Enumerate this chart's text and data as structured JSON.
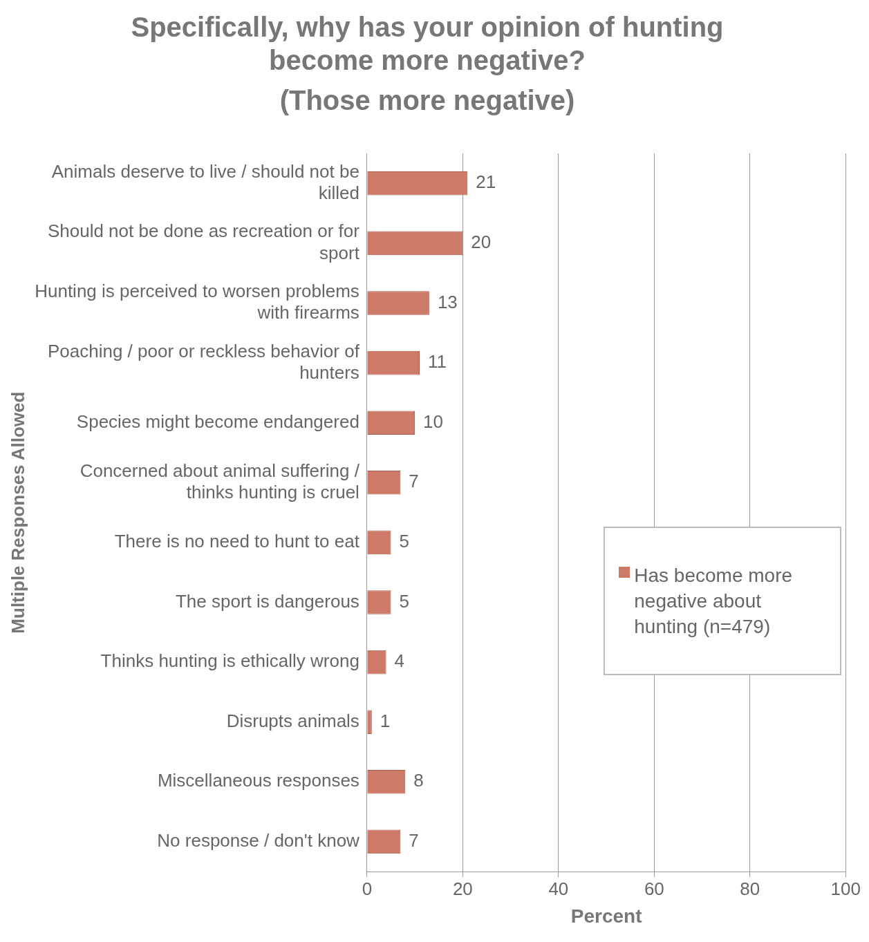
{
  "chart_data": {
    "type": "bar",
    "orientation": "horizontal",
    "title": "Specifically, why has your opinion of hunting become more negative?",
    "subtitle": "(Those more negative)",
    "xlabel": "Percent",
    "ylabel": "Multiple Responses Allowed",
    "categories": [
      "Animals deserve to live / should not be killed",
      "Should not be done as recreation or for sport",
      "Hunting is perceived to worsen problems with firearms",
      "Poaching / poor or reckless behavior of hunters",
      "Species might become endangered",
      "Concerned about animal suffering / thinks hunting is cruel",
      "There is no need to hunt to eat",
      "The sport is dangerous",
      "Thinks hunting is ethically wrong",
      "Disrupts animals",
      "Miscellaneous responses",
      "No response / don't know"
    ],
    "series": [
      {
        "name": "Has become more negative about hunting (n=479)",
        "color": "#cd7a68",
        "values": [
          21,
          20,
          13,
          11,
          10,
          7,
          5,
          5,
          4,
          1,
          8,
          7
        ]
      }
    ],
    "xlim": [
      0,
      100
    ],
    "xticks": [
      0,
      20,
      40,
      60,
      80,
      100
    ],
    "grid": "x",
    "legend": "right",
    "data_labels": true
  }
}
